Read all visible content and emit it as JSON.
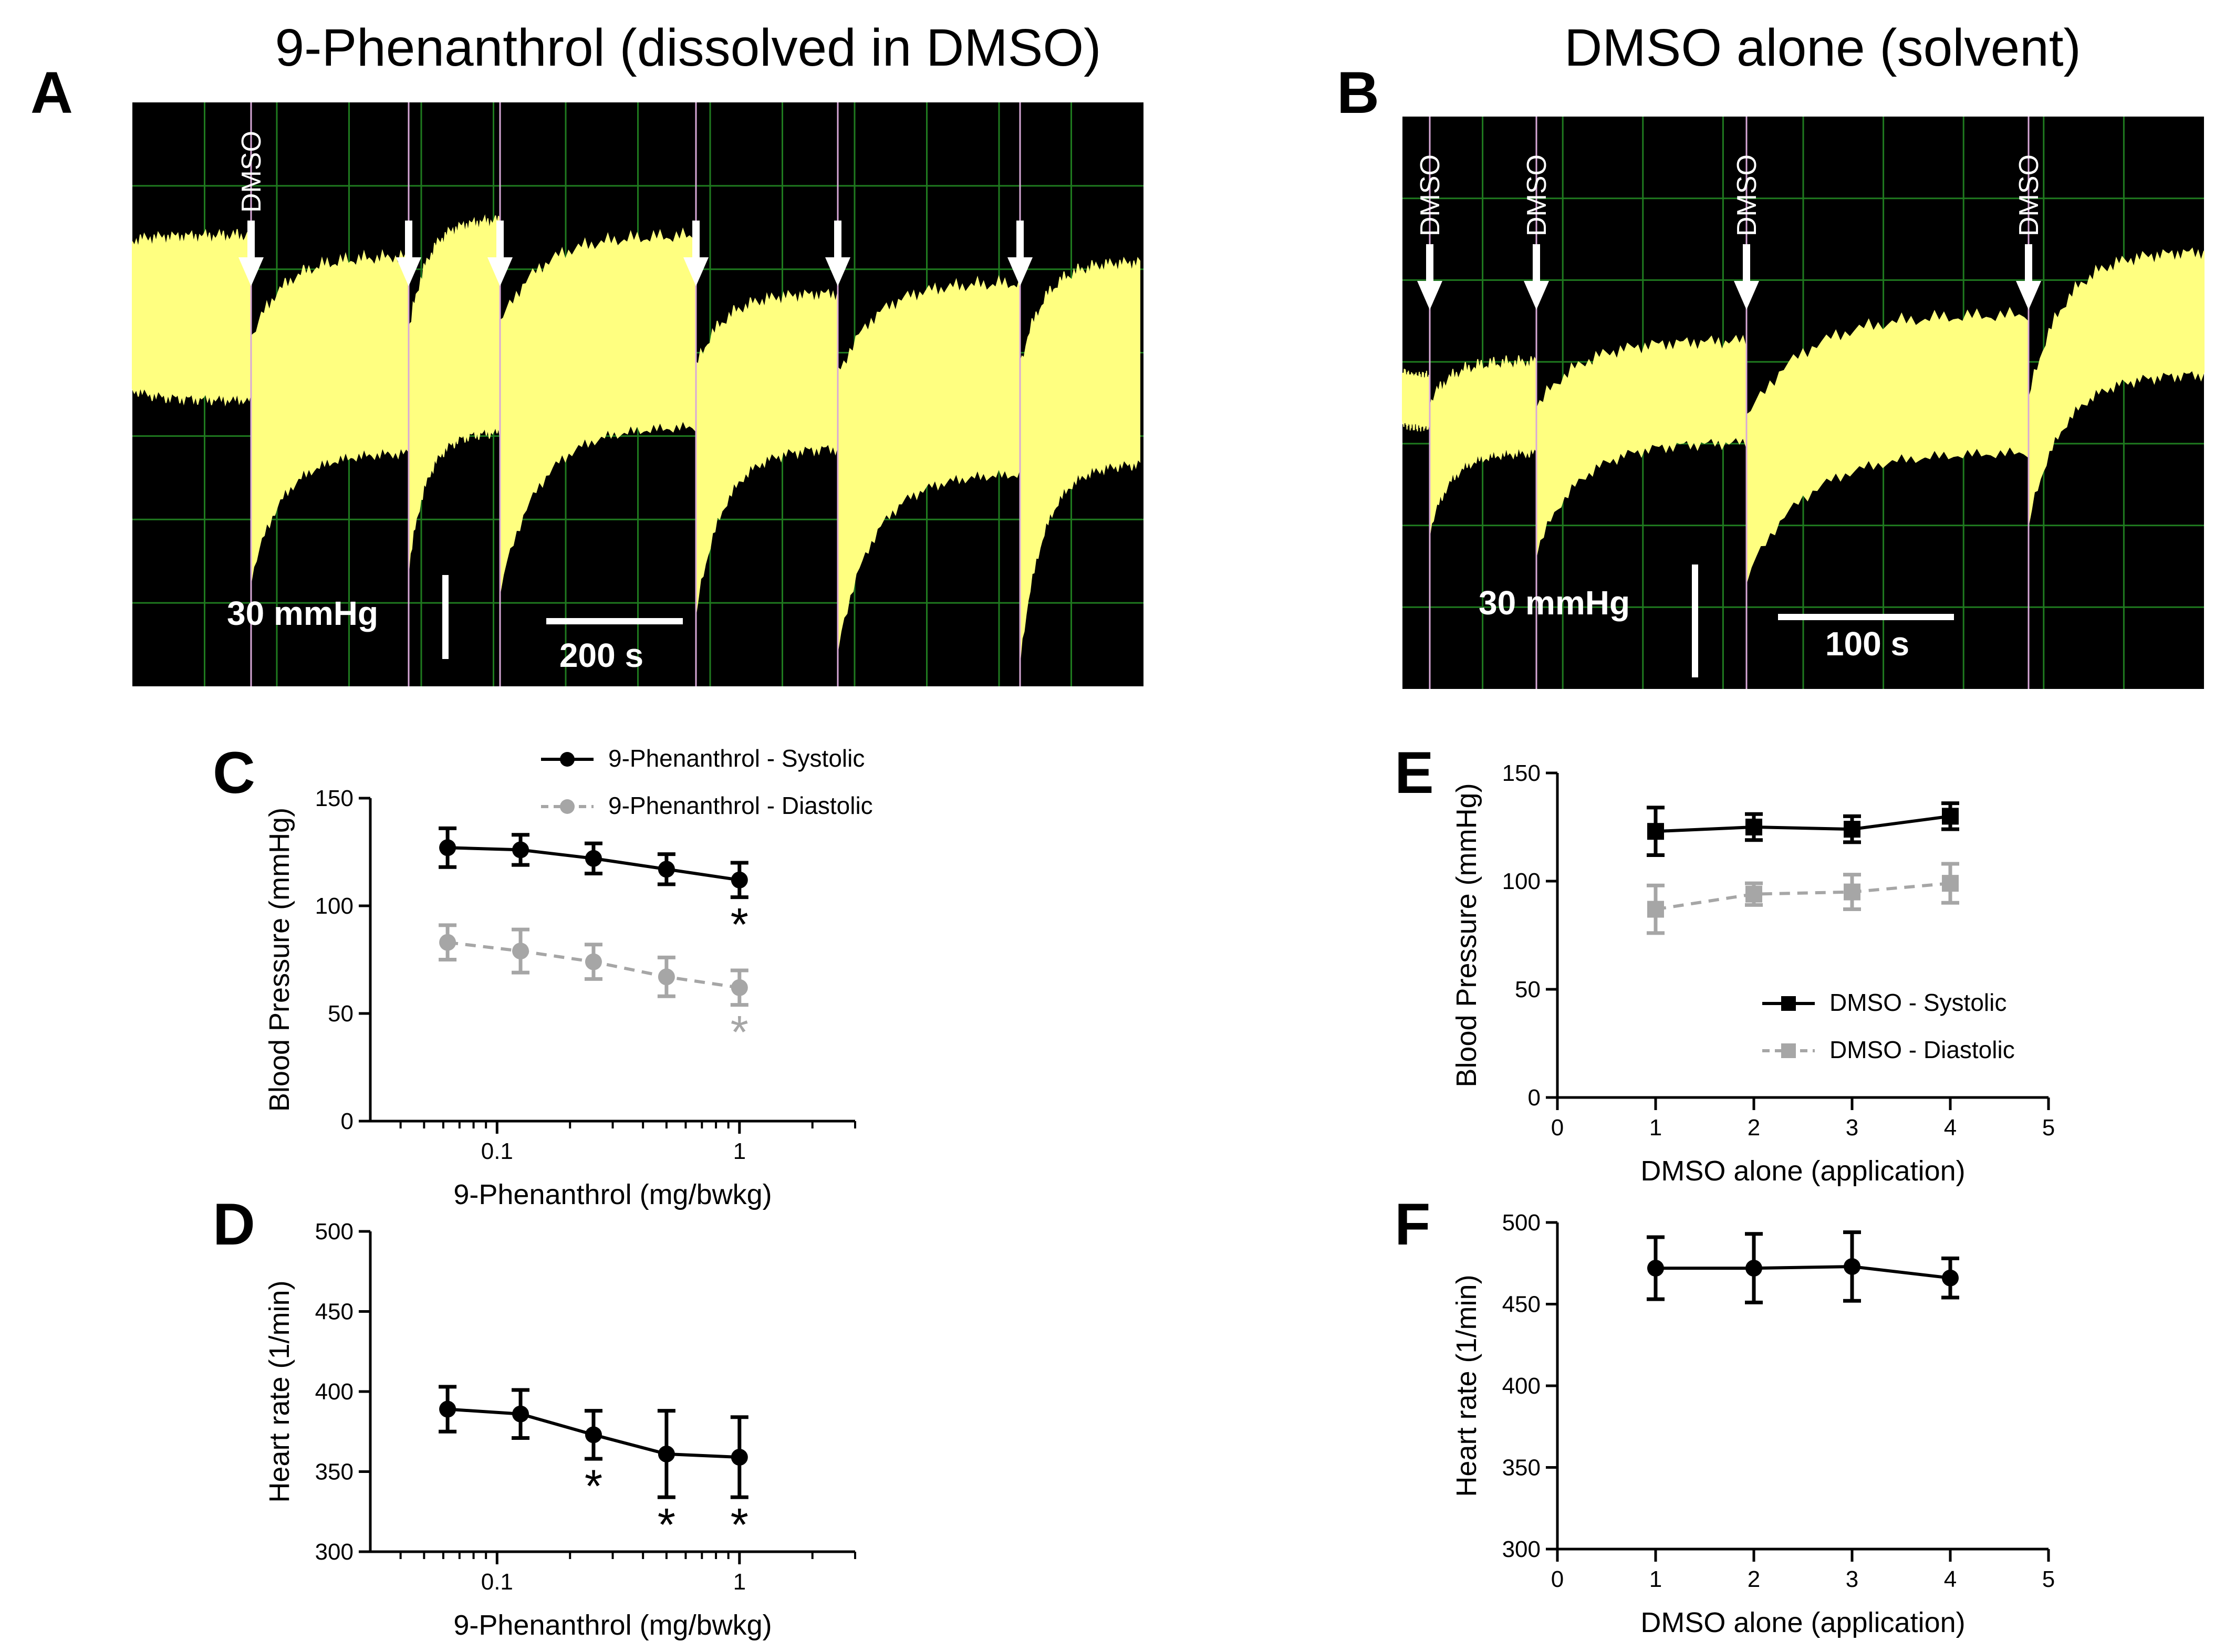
{
  "colors": {
    "background": "#ffffff",
    "trace_bg": "#000000",
    "trace": "#ffff80",
    "grid": "#1f7a1f",
    "systolic": "#000000",
    "diastolic": "#a6a6a6",
    "marker": "#ffffff",
    "star_diastolic": "#a6a6a6"
  },
  "panels": {
    "A": {
      "letter": "A",
      "title": "9-Phenanthrol (dissolved in DMSO)",
      "marker_label": "DMSO",
      "pressure_scale": "30 mmHg",
      "time_scale": "200 s",
      "events": [
        {
          "label": "DMSO",
          "t": 0
        },
        {
          "label": "",
          "t": 1
        },
        {
          "label": "",
          "t": 2
        },
        {
          "label": "",
          "t": 3
        },
        {
          "label": "",
          "t": 4
        },
        {
          "label": "",
          "t": 5
        }
      ]
    },
    "B": {
      "letter": "B",
      "title": "DMSO alone (solvent)",
      "pressure_scale": "30 mmHg",
      "time_scale": "100 s",
      "events": [
        {
          "label": "DMSO",
          "t": 0
        },
        {
          "label": "DMSO",
          "t": 1
        },
        {
          "label": "DMSO",
          "t": 2
        },
        {
          "label": "DMSO",
          "t": 3
        }
      ]
    },
    "C": {
      "letter": "C"
    },
    "D": {
      "letter": "D"
    },
    "E": {
      "letter": "E"
    },
    "F": {
      "letter": "F"
    }
  },
  "chart_data": [
    {
      "id": "C",
      "type": "line",
      "xscale": "log",
      "xlim": [
        0.03,
        3
      ],
      "xticks": [
        0.1,
        1
      ],
      "xtick_labels": [
        "0.1",
        "1"
      ],
      "ylim": [
        0,
        150
      ],
      "yticks": [
        0,
        50,
        100,
        150
      ],
      "xlabel": "9-Phenanthrol (mg/bwkg)",
      "ylabel": "Blood Pressure (mmHg)",
      "legend": "top-right",
      "series": [
        {
          "name": "9-Phenanthrol - Systolic",
          "color": "#000000",
          "dash": false,
          "marker": "circle",
          "x": [
            0.0625,
            0.125,
            0.25,
            0.5,
            1
          ],
          "y": [
            127,
            126,
            122,
            117,
            112
          ],
          "err": [
            9,
            7,
            7,
            7,
            8
          ],
          "stars": [
            false,
            false,
            false,
            false,
            true
          ]
        },
        {
          "name": "9-Phenanthrol - Diastolic",
          "color": "#a6a6a6",
          "dash": true,
          "marker": "circle",
          "x": [
            0.0625,
            0.125,
            0.25,
            0.5,
            1
          ],
          "y": [
            83,
            79,
            74,
            67,
            62
          ],
          "err": [
            8,
            10,
            8,
            9,
            8
          ],
          "stars": [
            false,
            false,
            false,
            false,
            true
          ]
        }
      ]
    },
    {
      "id": "D",
      "type": "line",
      "xscale": "log",
      "xlim": [
        0.03,
        3
      ],
      "xticks": [
        0.1,
        1
      ],
      "xtick_labels": [
        "0.1",
        "1"
      ],
      "ylim": [
        300,
        500
      ],
      "yticks": [
        300,
        350,
        400,
        450,
        500
      ],
      "xlabel": "9-Phenanthrol (mg/bwkg)",
      "ylabel": "Heart rate (1/min)",
      "series": [
        {
          "name": "Heart rate",
          "color": "#000000",
          "dash": false,
          "marker": "circle",
          "x": [
            0.0625,
            0.125,
            0.25,
            0.5,
            1
          ],
          "y": [
            389,
            386,
            373,
            361,
            359
          ],
          "err": [
            14,
            15,
            15,
            27,
            25
          ],
          "stars": [
            false,
            false,
            true,
            true,
            true
          ]
        }
      ]
    },
    {
      "id": "E",
      "type": "line",
      "xscale": "linear",
      "xlim": [
        0,
        5
      ],
      "xticks": [
        0,
        1,
        2,
        3,
        4,
        5
      ],
      "xtick_labels": [
        "0",
        "1",
        "2",
        "3",
        "4",
        "5"
      ],
      "ylim": [
        0,
        150
      ],
      "yticks": [
        0,
        50,
        100,
        150
      ],
      "xlabel": "DMSO alone (application)",
      "ylabel": "Blood Pressure (mmHg)",
      "legend": "bottom-right",
      "series": [
        {
          "name": "DMSO - Systolic",
          "color": "#000000",
          "dash": false,
          "marker": "square",
          "x": [
            1,
            2,
            3,
            4
          ],
          "y": [
            123,
            125,
            124,
            130
          ],
          "err": [
            11,
            6,
            6,
            6
          ],
          "stars": [
            false,
            false,
            false,
            false
          ]
        },
        {
          "name": "DMSO - Diastolic",
          "color": "#a6a6a6",
          "dash": true,
          "marker": "square",
          "x": [
            1,
            2,
            3,
            4
          ],
          "y": [
            87,
            94,
            95,
            99
          ],
          "err": [
            11,
            5,
            8,
            9
          ],
          "stars": [
            false,
            false,
            false,
            false
          ]
        }
      ]
    },
    {
      "id": "F",
      "type": "line",
      "xscale": "linear",
      "xlim": [
        0,
        5
      ],
      "xticks": [
        0,
        1,
        2,
        3,
        4,
        5
      ],
      "xtick_labels": [
        "0",
        "1",
        "2",
        "3",
        "4",
        "5"
      ],
      "ylim": [
        300,
        500
      ],
      "yticks": [
        300,
        350,
        400,
        450,
        500
      ],
      "xlabel": "DMSO alone (application)",
      "ylabel": "Heart rate (1/min)",
      "series": [
        {
          "name": "Heart rate",
          "color": "#000000",
          "dash": false,
          "marker": "circle",
          "x": [
            1,
            2,
            3,
            4
          ],
          "y": [
            472,
            472,
            473,
            466
          ],
          "err": [
            19,
            21,
            21,
            12
          ],
          "stars": [
            false,
            false,
            false,
            false
          ]
        }
      ]
    }
  ]
}
